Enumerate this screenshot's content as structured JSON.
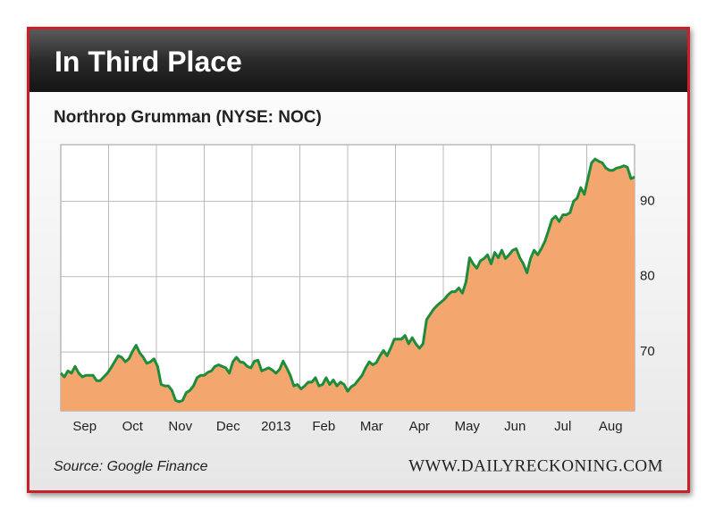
{
  "header_title": "In Third Place",
  "website": "WWW.DAILYRECKONING.COM",
  "chart_data": {
    "type": "area",
    "title": "Northrop Grumman (NYSE: NOC)",
    "source": "Source: Google Finance",
    "xticks": [
      "Sep",
      "Oct",
      "Nov",
      "Dec",
      "2013",
      "Feb",
      "Mar",
      "Apr",
      "May",
      "Jun",
      "Jul",
      "Aug"
    ],
    "values": [
      67.2,
      66.7,
      67.5,
      67.2,
      68.1,
      67.2,
      66.7,
      66.9,
      66.9,
      66.9,
      66.2,
      66.2,
      66.7,
      67.2,
      67.9,
      68.7,
      69.5,
      69.3,
      68.7,
      69.1,
      70.1,
      70.9,
      69.9,
      69.3,
      68.5,
      68.7,
      69.1,
      68.1,
      65.7,
      65.5,
      65.5,
      64.9,
      63.6,
      63.4,
      63.6,
      64.6,
      64.9,
      65.5,
      66.6,
      66.9,
      66.9,
      67.3,
      67.5,
      68.1,
      68.3,
      68.1,
      67.9,
      67.2,
      68.7,
      69.3,
      68.7,
      68.6,
      68.1,
      67.9,
      68.8,
      68.9,
      67.5,
      67.7,
      67.9,
      67.6,
      67.2,
      67.7,
      68.8,
      67.9,
      66.9,
      65.5,
      65.7,
      65.1,
      65.5,
      66.0,
      66.0,
      66.6,
      65.5,
      65.7,
      66.6,
      65.7,
      66.3,
      65.5,
      66.0,
      65.7,
      64.8,
      65.4,
      65.7,
      66.3,
      66.9,
      67.9,
      68.7,
      68.3,
      68.6,
      69.5,
      70.2,
      69.5,
      70.5,
      71.7,
      71.7,
      71.7,
      72.2,
      71.1,
      71.9,
      71.1,
      70.5,
      71.1,
      74.3,
      75.0,
      75.7,
      76.2,
      76.6,
      77.0,
      77.6,
      78.0,
      78.0,
      78.5,
      77.8,
      79.3,
      82.5,
      81.7,
      81.1,
      82.1,
      82.4,
      82.9,
      81.7,
      83.2,
      82.5,
      83.5,
      82.4,
      82.9,
      83.5,
      83.7,
      82.5,
      81.7,
      80.5,
      82.4,
      83.5,
      82.9,
      83.7,
      84.7,
      86.1,
      87.6,
      88.0,
      87.3,
      88.2,
      88.2,
      88.5,
      90.0,
      90.4,
      91.8,
      90.9,
      93.0,
      95.1,
      95.6,
      95.3,
      95.1,
      94.4,
      94.1,
      94.1,
      94.4,
      94.5,
      94.7,
      94.5,
      93.0,
      93.2
    ],
    "ylim": [
      62.2,
      97.5
    ],
    "yticks": [
      70,
      80,
      90
    ],
    "grid": true,
    "color": "#1e8c3a",
    "fill": "#f3a76e"
  }
}
